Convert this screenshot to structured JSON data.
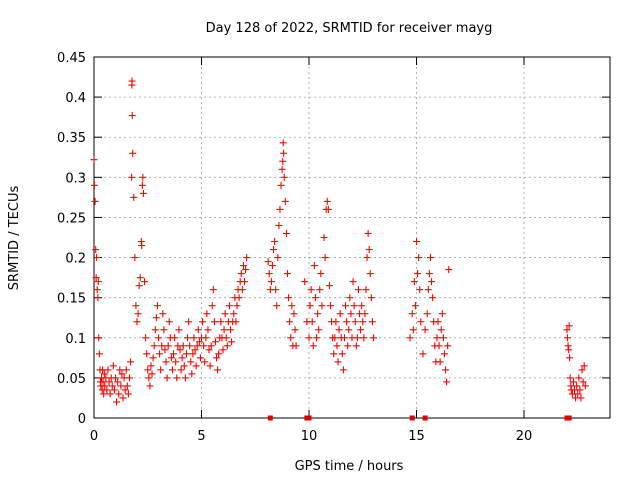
{
  "chart_data": {
    "type": "scatter",
    "title": "Day 128 of 2022, SRMTID for receiver mayg",
    "xlabel": "GPS time / hours",
    "ylabel": "SRMTID / TECUs",
    "xlim": [
      0,
      24
    ],
    "ylim": [
      0,
      0.45
    ],
    "xticks": [
      0,
      5,
      10,
      15,
      20
    ],
    "yticks": [
      0,
      0.05,
      0.1,
      0.15,
      0.2,
      0.25,
      0.3,
      0.35,
      0.4,
      0.45
    ],
    "xtick_labels": [
      "0",
      "5",
      "10",
      "15",
      "20"
    ],
    "ytick_labels": [
      "0",
      "0.05",
      "0.1",
      "0.15",
      "0.2",
      "0.25",
      "0.3",
      "0.35",
      "0.4",
      "0.45"
    ],
    "grid": true,
    "marker": "+",
    "color": "#ff0000",
    "series": [
      {
        "name": "SRMTID",
        "points": [
          [
            0.0,
            0.322
          ],
          [
            0.02,
            0.29
          ],
          [
            0.05,
            0.27
          ],
          [
            0.08,
            0.21
          ],
          [
            0.1,
            0.175
          ],
          [
            0.12,
            0.2
          ],
          [
            0.15,
            0.16
          ],
          [
            0.18,
            0.15
          ],
          [
            0.2,
            0.17
          ],
          [
            0.22,
            0.1
          ],
          [
            0.25,
            0.08
          ],
          [
            0.28,
            0.06
          ],
          [
            0.3,
            0.045
          ],
          [
            0.32,
            0.04
          ],
          [
            0.35,
            0.05
          ],
          [
            0.38,
            0.035
          ],
          [
            0.4,
            0.06
          ],
          [
            0.42,
            0.045
          ],
          [
            0.45,
            0.03
          ],
          [
            0.48,
            0.055
          ],
          [
            0.5,
            0.04
          ],
          [
            0.55,
            0.05
          ],
          [
            0.6,
            0.035
          ],
          [
            0.65,
            0.06
          ],
          [
            0.7,
            0.045
          ],
          [
            0.75,
            0.03
          ],
          [
            0.8,
            0.05
          ],
          [
            0.85,
            0.04
          ],
          [
            0.9,
            0.065
          ],
          [
            0.95,
            0.035
          ],
          [
            1.0,
            0.05
          ],
          [
            1.05,
            0.02
          ],
          [
            1.1,
            0.045
          ],
          [
            1.15,
            0.03
          ],
          [
            1.2,
            0.06
          ],
          [
            1.25,
            0.04
          ],
          [
            1.3,
            0.055
          ],
          [
            1.35,
            0.025
          ],
          [
            1.4,
            0.05
          ],
          [
            1.45,
            0.035
          ],
          [
            1.5,
            0.06
          ],
          [
            1.55,
            0.04
          ],
          [
            1.6,
            0.03
          ],
          [
            1.65,
            0.05
          ],
          [
            1.7,
            0.07
          ],
          [
            1.75,
            0.3
          ],
          [
            1.76,
            0.415
          ],
          [
            1.77,
            0.42
          ],
          [
            1.78,
            0.377
          ],
          [
            1.8,
            0.33
          ],
          [
            1.85,
            0.275
          ],
          [
            1.9,
            0.2
          ],
          [
            1.95,
            0.14
          ],
          [
            2.0,
            0.12
          ],
          [
            2.05,
            0.13
          ],
          [
            2.1,
            0.165
          ],
          [
            2.15,
            0.175
          ],
          [
            2.2,
            0.22
          ],
          [
            2.22,
            0.215
          ],
          [
            2.25,
            0.29
          ],
          [
            2.27,
            0.3
          ],
          [
            2.3,
            0.28
          ],
          [
            2.35,
            0.17
          ],
          [
            2.4,
            0.1
          ],
          [
            2.45,
            0.08
          ],
          [
            2.5,
            0.06
          ],
          [
            2.55,
            0.05
          ],
          [
            2.6,
            0.04
          ],
          [
            2.65,
            0.065
          ],
          [
            2.7,
            0.055
          ],
          [
            2.75,
            0.075
          ],
          [
            2.8,
            0.09
          ],
          [
            2.85,
            0.11
          ],
          [
            2.9,
            0.125
          ],
          [
            2.95,
            0.14
          ],
          [
            3.0,
            0.1
          ],
          [
            3.05,
            0.08
          ],
          [
            3.1,
            0.06
          ],
          [
            3.15,
            0.09
          ],
          [
            3.2,
            0.13
          ],
          [
            3.25,
            0.11
          ],
          [
            3.3,
            0.085
          ],
          [
            3.35,
            0.07
          ],
          [
            3.4,
            0.05
          ],
          [
            3.45,
            0.09
          ],
          [
            3.5,
            0.12
          ],
          [
            3.55,
            0.1
          ],
          [
            3.6,
            0.075
          ],
          [
            3.65,
            0.06
          ],
          [
            3.7,
            0.08
          ],
          [
            3.75,
            0.1
          ],
          [
            3.8,
            0.07
          ],
          [
            3.85,
            0.05
          ],
          [
            3.9,
            0.09
          ],
          [
            3.95,
            0.11
          ],
          [
            4.0,
            0.085
          ],
          [
            4.05,
            0.06
          ],
          [
            4.1,
            0.075
          ],
          [
            4.15,
            0.09
          ],
          [
            4.2,
            0.065
          ],
          [
            4.25,
            0.05
          ],
          [
            4.3,
            0.08
          ],
          [
            4.35,
            0.1
          ],
          [
            4.4,
            0.12
          ],
          [
            4.45,
            0.09
          ],
          [
            4.5,
            0.07
          ],
          [
            4.55,
            0.055
          ],
          [
            4.6,
            0.08
          ],
          [
            4.65,
            0.1
          ],
          [
            4.7,
            0.085
          ],
          [
            4.75,
            0.065
          ],
          [
            4.8,
            0.09
          ],
          [
            4.85,
            0.11
          ],
          [
            4.9,
            0.095
          ],
          [
            4.95,
            0.075
          ],
          [
            5.0,
            0.1
          ],
          [
            5.05,
            0.12
          ],
          [
            5.1,
            0.09
          ],
          [
            5.15,
            0.07
          ],
          [
            5.2,
            0.1
          ],
          [
            5.25,
            0.13
          ],
          [
            5.3,
            0.11
          ],
          [
            5.35,
            0.085
          ],
          [
            5.4,
            0.065
          ],
          [
            5.45,
            0.09
          ],
          [
            5.5,
            0.14
          ],
          [
            5.55,
            0.16
          ],
          [
            5.6,
            0.12
          ],
          [
            5.65,
            0.095
          ],
          [
            5.7,
            0.075
          ],
          [
            5.75,
            0.06
          ],
          [
            5.8,
            0.08
          ],
          [
            5.85,
            0.1
          ],
          [
            5.9,
            0.12
          ],
          [
            5.95,
            0.1
          ],
          [
            6.0,
            0.085
          ],
          [
            6.05,
            0.11
          ],
          [
            6.1,
            0.13
          ],
          [
            6.15,
            0.1
          ],
          [
            6.2,
            0.09
          ],
          [
            6.25,
            0.12
          ],
          [
            6.3,
            0.14
          ],
          [
            6.35,
            0.11
          ],
          [
            6.4,
            0.095
          ],
          [
            6.45,
            0.12
          ],
          [
            6.5,
            0.13
          ],
          [
            6.55,
            0.15
          ],
          [
            6.6,
            0.12
          ],
          [
            6.65,
            0.14
          ],
          [
            6.7,
            0.16
          ],
          [
            6.75,
            0.15
          ],
          [
            6.8,
            0.17
          ],
          [
            6.85,
            0.18
          ],
          [
            6.9,
            0.16
          ],
          [
            6.95,
            0.19
          ],
          [
            7.0,
            0.17
          ],
          [
            7.05,
            0.185
          ],
          [
            7.1,
            0.2
          ],
          [
            8.1,
            0.195
          ],
          [
            8.15,
            0.18
          ],
          [
            8.2,
            0.16
          ],
          [
            8.25,
            0.17
          ],
          [
            8.3,
            0.19
          ],
          [
            8.35,
            0.21
          ],
          [
            8.4,
            0.22
          ],
          [
            8.45,
            0.16
          ],
          [
            8.5,
            0.14
          ],
          [
            8.55,
            0.2
          ],
          [
            8.6,
            0.24
          ],
          [
            8.65,
            0.26
          ],
          [
            8.7,
            0.29
          ],
          [
            8.75,
            0.31
          ],
          [
            8.78,
            0.32
          ],
          [
            8.8,
            0.343
          ],
          [
            8.82,
            0.33
          ],
          [
            8.85,
            0.3
          ],
          [
            8.9,
            0.27
          ],
          [
            8.95,
            0.23
          ],
          [
            9.0,
            0.18
          ],
          [
            9.05,
            0.15
          ],
          [
            9.1,
            0.12
          ],
          [
            9.15,
            0.1
          ],
          [
            9.2,
            0.14
          ],
          [
            9.25,
            0.09
          ],
          [
            9.3,
            0.13
          ],
          [
            9.35,
            0.11
          ],
          [
            9.4,
            0.09
          ],
          [
            9.8,
            0.17
          ],
          [
            9.9,
            0.12
          ],
          [
            10.0,
            0.1
          ],
          [
            10.05,
            0.14
          ],
          [
            10.1,
            0.16
          ],
          [
            10.15,
            0.12
          ],
          [
            10.2,
            0.09
          ],
          [
            10.25,
            0.19
          ],
          [
            10.3,
            0.15
          ],
          [
            10.35,
            0.1
          ],
          [
            10.4,
            0.13
          ],
          [
            10.45,
            0.11
          ],
          [
            10.5,
            0.16
          ],
          [
            10.55,
            0.18
          ],
          [
            10.6,
            0.14
          ],
          [
            10.7,
            0.225
          ],
          [
            10.75,
            0.2
          ],
          [
            10.8,
            0.26
          ],
          [
            10.85,
            0.27
          ],
          [
            10.9,
            0.26
          ],
          [
            10.95,
            0.165
          ],
          [
            11.0,
            0.14
          ],
          [
            11.05,
            0.12
          ],
          [
            11.1,
            0.1
          ],
          [
            11.15,
            0.08
          ],
          [
            11.2,
            0.1
          ],
          [
            11.25,
            0.12
          ],
          [
            11.3,
            0.09
          ],
          [
            11.35,
            0.07
          ],
          [
            11.4,
            0.11
          ],
          [
            11.45,
            0.13
          ],
          [
            11.5,
            0.1
          ],
          [
            11.55,
            0.08
          ],
          [
            11.6,
            0.06
          ],
          [
            11.65,
            0.1
          ],
          [
            11.7,
            0.14
          ],
          [
            11.75,
            0.12
          ],
          [
            11.8,
            0.09
          ],
          [
            11.85,
            0.11
          ],
          [
            11.9,
            0.15
          ],
          [
            11.95,
            0.13
          ],
          [
            12.0,
            0.1
          ],
          [
            12.05,
            0.17
          ],
          [
            12.1,
            0.14
          ],
          [
            12.15,
            0.12
          ],
          [
            12.2,
            0.09
          ],
          [
            12.25,
            0.1
          ],
          [
            12.3,
            0.16
          ],
          [
            12.35,
            0.13
          ],
          [
            12.4,
            0.11
          ],
          [
            12.45,
            0.14
          ],
          [
            12.5,
            0.12
          ],
          [
            12.55,
            0.1
          ],
          [
            12.6,
            0.13
          ],
          [
            12.65,
            0.16
          ],
          [
            12.7,
            0.2
          ],
          [
            12.75,
            0.23
          ],
          [
            12.8,
            0.21
          ],
          [
            12.85,
            0.18
          ],
          [
            12.9,
            0.15
          ],
          [
            12.95,
            0.12
          ],
          [
            13.0,
            0.1
          ],
          [
            14.7,
            0.1
          ],
          [
            14.8,
            0.13
          ],
          [
            14.85,
            0.11
          ],
          [
            14.9,
            0.17
          ],
          [
            14.95,
            0.14
          ],
          [
            15.0,
            0.22
          ],
          [
            15.05,
            0.18
          ],
          [
            15.1,
            0.2
          ],
          [
            15.15,
            0.16
          ],
          [
            15.2,
            0.12
          ],
          [
            15.3,
            0.08
          ],
          [
            15.4,
            0.11
          ],
          [
            15.5,
            0.13
          ],
          [
            15.55,
            0.16
          ],
          [
            15.6,
            0.18
          ],
          [
            15.65,
            0.2
          ],
          [
            15.7,
            0.17
          ],
          [
            15.75,
            0.15
          ],
          [
            15.8,
            0.12
          ],
          [
            15.85,
            0.09
          ],
          [
            15.9,
            0.07
          ],
          [
            15.95,
            0.1
          ],
          [
            16.0,
            0.12
          ],
          [
            16.05,
            0.09
          ],
          [
            16.1,
            0.07
          ],
          [
            16.15,
            0.11
          ],
          [
            16.2,
            0.13
          ],
          [
            16.25,
            0.1
          ],
          [
            16.3,
            0.08
          ],
          [
            16.35,
            0.06
          ],
          [
            16.4,
            0.045
          ],
          [
            16.45,
            0.09
          ],
          [
            16.5,
            0.185
          ],
          [
            22.0,
            0.11
          ],
          [
            22.02,
            0.1
          ],
          [
            22.05,
            0.09
          ],
          [
            22.08,
            0.085
          ],
          [
            22.1,
            0.115
          ],
          [
            22.12,
            0.075
          ],
          [
            22.15,
            0.05
          ],
          [
            22.18,
            0.04
          ],
          [
            22.2,
            0.035
          ],
          [
            22.25,
            0.03
          ],
          [
            22.3,
            0.045
          ],
          [
            22.35,
            0.035
          ],
          [
            22.4,
            0.025
          ],
          [
            22.45,
            0.04
          ],
          [
            22.5,
            0.03
          ],
          [
            22.55,
            0.05
          ],
          [
            22.6,
            0.035
          ],
          [
            22.65,
            0.025
          ],
          [
            22.7,
            0.06
          ],
          [
            22.75,
            0.045
          ],
          [
            22.8,
            0.065
          ],
          [
            22.85,
            0.04
          ]
        ]
      }
    ],
    "zero_markers_x": [
      8.2,
      9.9,
      10.0,
      14.8,
      15.4,
      22.0,
      22.1
    ]
  }
}
